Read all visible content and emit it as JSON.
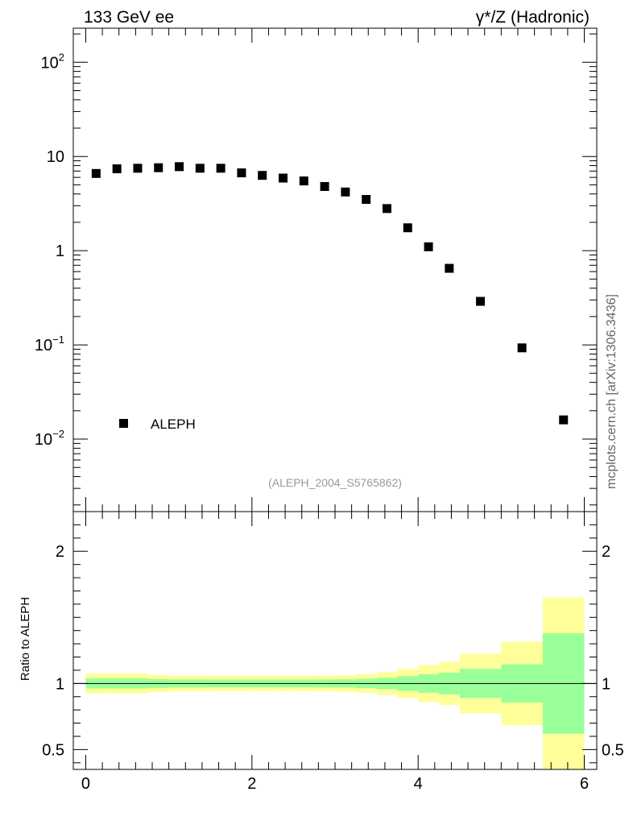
{
  "header": {
    "left_title": "133 GeV ee",
    "right_title_symbol": "γ*",
    "right_title_rest": "/Z (Hadronic)"
  },
  "watermark": "mcplots.cern.ch [arXiv:1306.3436]",
  "analysis_label": "(ALEPH_2004_S5765862)",
  "chart_data": [
    {
      "type": "scatter",
      "panel": "main",
      "yscale": "log",
      "xlim": [
        -0.15,
        6.15
      ],
      "ylim": [
        0.0017,
        230
      ],
      "y_tick_labels": [
        {
          "value": 100,
          "base": "10",
          "exp": "2"
        },
        {
          "value": 10,
          "base": "10",
          "exp": ""
        },
        {
          "value": 1,
          "base": "1",
          "exp": ""
        },
        {
          "value": 0.1,
          "base": "10",
          "exp": "−1"
        },
        {
          "value": 0.01,
          "base": "10",
          "exp": "−2"
        }
      ],
      "legend": {
        "label": "ALEPH",
        "position": "bottom-left"
      },
      "series": [
        {
          "name": "ALEPH",
          "x": [
            0.125,
            0.375,
            0.625,
            0.875,
            1.125,
            1.375,
            1.625,
            1.875,
            2.125,
            2.375,
            2.625,
            2.875,
            3.125,
            3.375,
            3.625,
            3.875,
            4.125,
            4.375,
            4.75,
            5.25,
            5.75
          ],
          "y": [
            6.6,
            7.4,
            7.5,
            7.6,
            7.8,
            7.5,
            7.5,
            6.7,
            6.3,
            5.9,
            5.5,
            4.8,
            4.2,
            3.5,
            2.8,
            1.75,
            1.1,
            0.65,
            0.29,
            0.093,
            0.016
          ]
        }
      ]
    },
    {
      "type": "area",
      "panel": "ratio",
      "ylabel": "Ratio to ALEPH",
      "xlim": [
        -0.15,
        6.15
      ],
      "ylim": [
        0.35,
        2.3
      ],
      "x_ticks": [
        0,
        2,
        4,
        6
      ],
      "x_tick_labels": [
        "0",
        "2",
        "4",
        "6"
      ],
      "y_ticks": [
        0.5,
        1,
        2
      ],
      "y_tick_labels": [
        "0.5",
        "1",
        "2"
      ],
      "reference_line": 1,
      "bins": [
        {
          "lo": 0.0,
          "hi": 0.25,
          "inner": [
            0.962,
            1.038
          ],
          "outer": [
            0.924,
            1.076
          ]
        },
        {
          "lo": 0.25,
          "hi": 0.5,
          "inner": [
            0.962,
            1.038
          ],
          "outer": [
            0.924,
            1.076
          ]
        },
        {
          "lo": 0.5,
          "hi": 0.75,
          "inner": [
            0.962,
            1.038
          ],
          "outer": [
            0.924,
            1.076
          ]
        },
        {
          "lo": 0.75,
          "hi": 1.0,
          "inner": [
            0.967,
            1.033
          ],
          "outer": [
            0.934,
            1.066
          ]
        },
        {
          "lo": 1.0,
          "hi": 1.25,
          "inner": [
            0.97,
            1.03
          ],
          "outer": [
            0.94,
            1.06
          ]
        },
        {
          "lo": 1.25,
          "hi": 1.5,
          "inner": [
            0.97,
            1.03
          ],
          "outer": [
            0.94,
            1.06
          ]
        },
        {
          "lo": 1.5,
          "hi": 1.75,
          "inner": [
            0.971,
            1.029
          ],
          "outer": [
            0.942,
            1.058
          ]
        },
        {
          "lo": 1.75,
          "hi": 2.0,
          "inner": [
            0.971,
            1.029
          ],
          "outer": [
            0.942,
            1.058
          ]
        },
        {
          "lo": 2.0,
          "hi": 2.25,
          "inner": [
            0.971,
            1.029
          ],
          "outer": [
            0.942,
            1.058
          ]
        },
        {
          "lo": 2.25,
          "hi": 2.5,
          "inner": [
            0.971,
            1.029
          ],
          "outer": [
            0.942,
            1.058
          ]
        },
        {
          "lo": 2.5,
          "hi": 2.75,
          "inner": [
            0.971,
            1.029
          ],
          "outer": [
            0.942,
            1.058
          ]
        },
        {
          "lo": 2.75,
          "hi": 3.0,
          "inner": [
            0.97,
            1.03
          ],
          "outer": [
            0.94,
            1.06
          ]
        },
        {
          "lo": 3.0,
          "hi": 3.25,
          "inner": [
            0.969,
            1.031
          ],
          "outer": [
            0.938,
            1.062
          ]
        },
        {
          "lo": 3.25,
          "hi": 3.5,
          "inner": [
            0.965,
            1.035
          ],
          "outer": [
            0.93,
            1.07
          ]
        },
        {
          "lo": 3.5,
          "hi": 3.75,
          "inner": [
            0.957,
            1.043
          ],
          "outer": [
            0.914,
            1.086
          ]
        },
        {
          "lo": 3.75,
          "hi": 4.0,
          "inner": [
            0.945,
            1.055
          ],
          "outer": [
            0.89,
            1.11
          ]
        },
        {
          "lo": 4.0,
          "hi": 4.25,
          "inner": [
            0.93,
            1.07
          ],
          "outer": [
            0.86,
            1.14
          ]
        },
        {
          "lo": 4.25,
          "hi": 4.5,
          "inner": [
            0.918,
            1.082
          ],
          "outer": [
            0.836,
            1.164
          ]
        },
        {
          "lo": 4.5,
          "hi": 5.0,
          "inner": [
            0.89,
            1.11
          ],
          "outer": [
            0.775,
            1.225
          ]
        },
        {
          "lo": 5.0,
          "hi": 5.5,
          "inner": [
            0.855,
            1.145
          ],
          "outer": [
            0.685,
            1.315
          ]
        },
        {
          "lo": 5.5,
          "hi": 6.0,
          "inner": [
            0.62,
            1.38
          ],
          "outer": [
            0.35,
            1.65
          ]
        }
      ],
      "colors": {
        "inner": "#99ff99",
        "outer": "#ffff99"
      }
    }
  ]
}
